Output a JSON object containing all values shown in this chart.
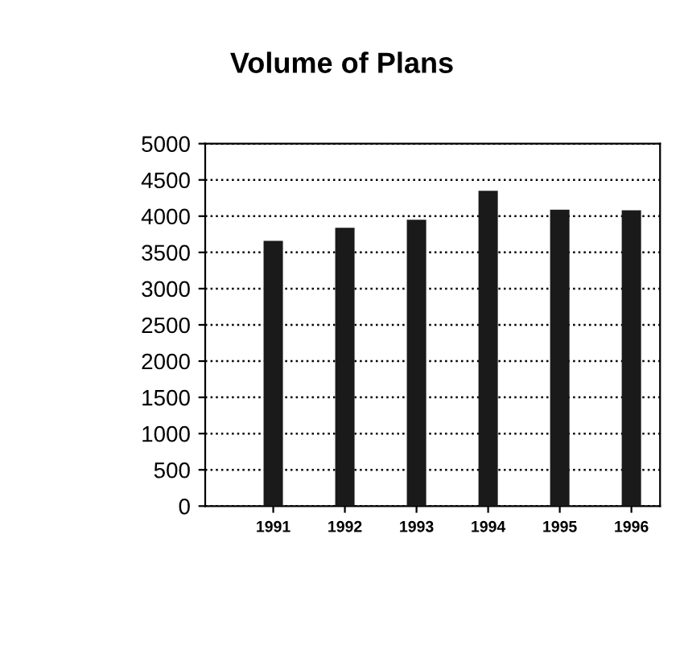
{
  "chart_data": {
    "type": "bar",
    "title": "Volume of Plans",
    "categories": [
      "1991",
      "1992",
      "1993",
      "1994",
      "1995",
      "1996"
    ],
    "values": [
      3660,
      3840,
      3950,
      4350,
      4090,
      4080
    ],
    "color": "#1a1a1a",
    "ylim": [
      0,
      5000
    ],
    "yticks": [
      0,
      500,
      1000,
      1500,
      2000,
      2500,
      3000,
      3500,
      4000,
      4500,
      5000
    ],
    "grid": "y",
    "line_style": "dotted"
  }
}
